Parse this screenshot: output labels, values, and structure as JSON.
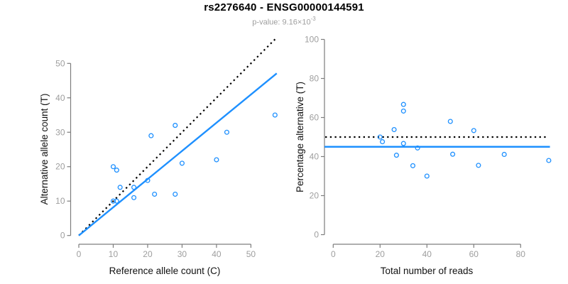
{
  "header": {
    "title": "rs2276640 - ENSG00000144591",
    "p_value_prefix": "p-value: 9.16×10",
    "p_value_exponent": "-3"
  },
  "colors": {
    "accent_blue": "#1E90FF",
    "line_black": "#000000",
    "axis_gray": "#7d7d7d",
    "tick_text_gray": "#9e9e9e",
    "axis_title_color": "#111111",
    "title_color": "#000000",
    "subtitle_color": "#9e9e9e"
  },
  "chart_data": [
    {
      "type": "scatter",
      "name": "allele-counts-scatter",
      "xlabel": "Reference allele count (C)",
      "ylabel": "Alternative allele count (T)",
      "xlim": [
        -2.4,
        57.8
      ],
      "ylim": [
        -2.4,
        57.8
      ],
      "xticks": [
        0,
        10,
        20,
        30,
        40,
        50
      ],
      "yticks": [
        0,
        10,
        20,
        30,
        40,
        50
      ],
      "grid": false,
      "legend": "none",
      "points": [
        [
          10,
          20
        ],
        [
          11,
          19
        ],
        [
          12,
          14
        ],
        [
          10,
          10
        ],
        [
          11,
          10
        ],
        [
          16,
          14
        ],
        [
          16,
          11
        ],
        [
          20,
          16
        ],
        [
          21,
          29
        ],
        [
          22,
          12
        ],
        [
          28,
          32
        ],
        [
          28,
          12
        ],
        [
          30,
          21
        ],
        [
          40,
          22
        ],
        [
          43,
          30
        ],
        [
          57,
          35
        ]
      ],
      "lines": [
        {
          "name": "identity-line",
          "style": "dotted",
          "color": "#000000",
          "points": [
            [
              0,
              0
            ],
            [
              57.3,
              57.3
            ]
          ]
        },
        {
          "name": "fit-line",
          "style": "solid",
          "color": "#1E90FF",
          "points": [
            [
              0,
              0
            ],
            [
              57.5,
              47.1
            ]
          ]
        }
      ]
    },
    {
      "type": "scatter",
      "name": "percentage-vs-coverage-scatter",
      "xlabel": "Total number of reads",
      "ylabel": "Percentage alternative (T)",
      "xlim": [
        -3.7,
        92.5
      ],
      "ylim": [
        -5,
        105
      ],
      "xticks": [
        0,
        20,
        40,
        60,
        80
      ],
      "yticks": [
        0,
        20,
        40,
        60,
        80,
        100
      ],
      "grid": false,
      "legend": "none",
      "points": [
        [
          30,
          66.7
        ],
        [
          30,
          63.3
        ],
        [
          26,
          53.8
        ],
        [
          20,
          50
        ],
        [
          21,
          47.6
        ],
        [
          30,
          46.7
        ],
        [
          36,
          44.4
        ],
        [
          27,
          40.7
        ],
        [
          34,
          35.3
        ],
        [
          40,
          30
        ],
        [
          50,
          58
        ],
        [
          51,
          41.2
        ],
        [
          60,
          53.3
        ],
        [
          62,
          35.5
        ],
        [
          73,
          41.1
        ],
        [
          92,
          38
        ]
      ],
      "lines": [
        {
          "name": "expected-50-line",
          "style": "dotted",
          "color": "#000000",
          "points": [
            [
              -3.4,
              50
            ],
            [
              92,
              50
            ]
          ]
        },
        {
          "name": "mean-percentage-line",
          "style": "solid",
          "color": "#1E90FF",
          "points": [
            [
              -3.7,
              45
            ],
            [
              92.5,
              45
            ]
          ]
        }
      ]
    }
  ]
}
